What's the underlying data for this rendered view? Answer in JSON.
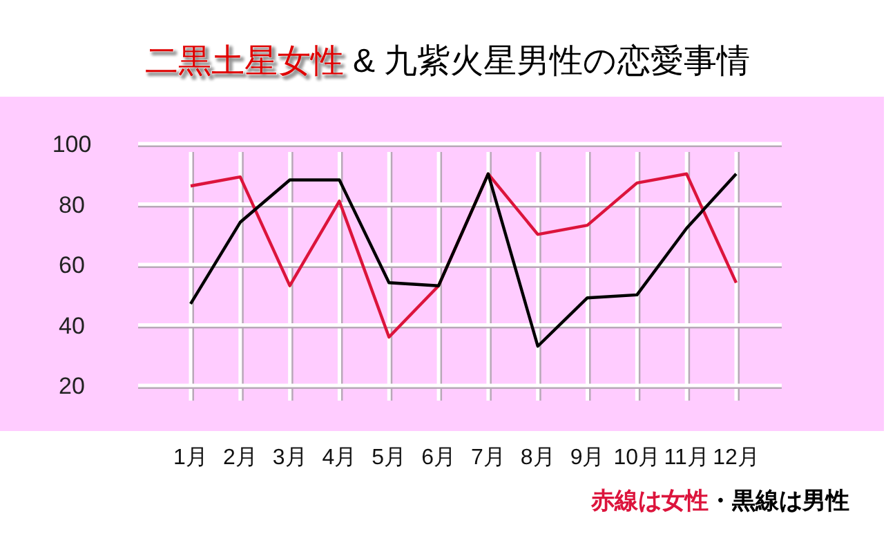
{
  "chart_data": {
    "type": "line",
    "title": "二黒土星女性 & 九紫火星男性の恋愛事情",
    "categories": [
      "1月",
      "2月",
      "3月",
      "4月",
      "5月",
      "6月",
      "7月",
      "8月",
      "9月",
      "10月",
      "11月",
      "12月"
    ],
    "series": [
      {
        "name": "赤線は女性",
        "color": "#dc143c",
        "values": [
          86,
          89,
          53,
          81,
          36,
          53,
          90,
          70,
          73,
          87,
          90,
          54
        ]
      },
      {
        "name": "・黒線は男性",
        "color": "#000000",
        "values": [
          47,
          74,
          88,
          88,
          54,
          53,
          90,
          33,
          49,
          50,
          72,
          90
        ]
      }
    ],
    "ylim": [
      15,
      100
    ],
    "yticks": [
      20,
      40,
      60,
      80,
      100
    ],
    "grid": true,
    "legend": "bottom right",
    "marker": "none",
    "line_style": "solid"
  }
}
